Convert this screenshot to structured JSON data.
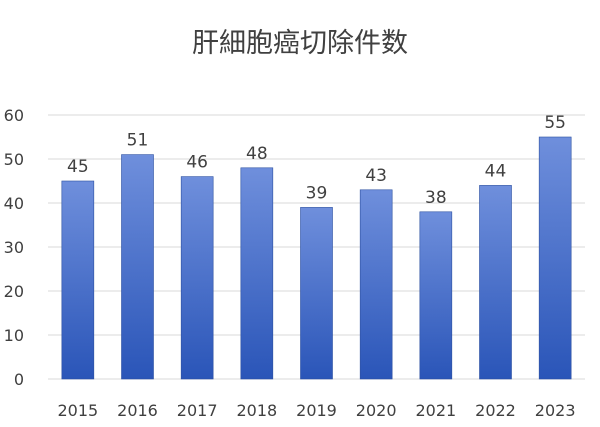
{
  "chart_data": {
    "type": "bar",
    "title": "肝細胞癌切除件数",
    "xlabel": "",
    "ylabel": "",
    "categories": [
      "2015",
      "2016",
      "2017",
      "2018",
      "2019",
      "2020",
      "2021",
      "2022",
      "2023"
    ],
    "values": [
      45,
      51,
      46,
      48,
      39,
      43,
      38,
      44,
      55
    ],
    "ylim": [
      0,
      60
    ],
    "yticks": [
      0,
      10,
      20,
      30,
      40,
      50,
      60
    ],
    "grid": true,
    "legend": "none",
    "data_labels": true,
    "colors": {
      "bar_top": "#6f8fdc",
      "bar_bottom": "#2a55b8",
      "bar_edge": "#2b4fa0"
    }
  }
}
